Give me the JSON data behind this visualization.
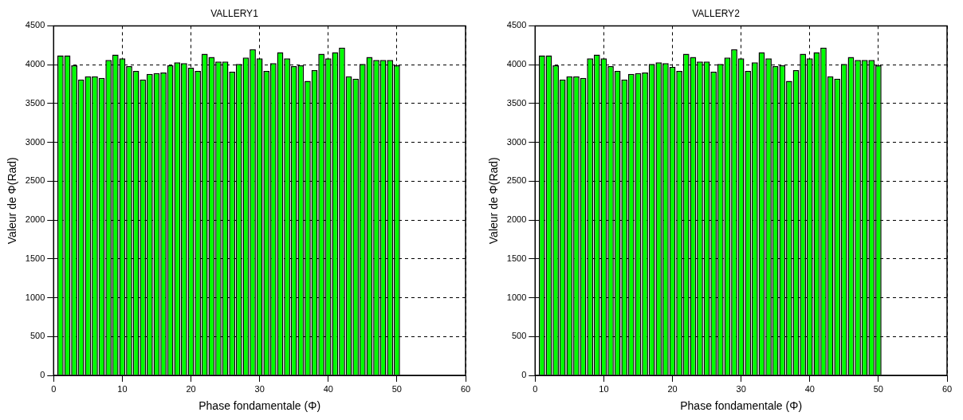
{
  "chart_data": [
    {
      "type": "bar",
      "title": "VALLERY1",
      "xlabel": "Phase fondamentale (Φ)",
      "ylabel": "Valeur de Φ(Rad)",
      "x": [
        1,
        2,
        3,
        4,
        5,
        6,
        7,
        8,
        9,
        10,
        11,
        12,
        13,
        14,
        15,
        16,
        17,
        18,
        19,
        20,
        21,
        22,
        23,
        24,
        25,
        26,
        27,
        28,
        29,
        30,
        31,
        32,
        33,
        34,
        35,
        36,
        37,
        38,
        39,
        40,
        41,
        42,
        43,
        44,
        45,
        46,
        47,
        48,
        49,
        50
      ],
      "values": [
        4120,
        4120,
        3990,
        3810,
        3850,
        3850,
        3830,
        4060,
        4130,
        4080,
        3980,
        3920,
        3810,
        3880,
        3890,
        3900,
        3990,
        4030,
        4020,
        3960,
        3920,
        4140,
        4100,
        4040,
        4040,
        3910,
        4010,
        4090,
        4200,
        4080,
        3920,
        4020,
        4160,
        4080,
        3980,
        3990,
        3790,
        3930,
        4140,
        4080,
        4160,
        4220,
        3850,
        3820,
        4010,
        4100,
        4060,
        4060,
        4060,
        3990
      ],
      "color": "#00ff00",
      "xlim": [
        0,
        60
      ],
      "xticks": [
        0,
        10,
        20,
        30,
        40,
        50,
        60
      ],
      "ylim": [
        0,
        4500
      ],
      "yticks": [
        0,
        500,
        1000,
        1500,
        2000,
        2500,
        3000,
        3500,
        4000,
        4500
      ],
      "grid": true
    },
    {
      "type": "bar",
      "title": "VALLERY2",
      "xlabel": "Phase fondamentale (Φ)",
      "ylabel": "Valeur de Φ(Rad)",
      "x": [
        1,
        2,
        3,
        4,
        5,
        6,
        7,
        8,
        9,
        10,
        11,
        12,
        13,
        14,
        15,
        16,
        17,
        18,
        19,
        20,
        21,
        22,
        23,
        24,
        25,
        26,
        27,
        28,
        29,
        30,
        31,
        32,
        33,
        34,
        35,
        36,
        37,
        38,
        39,
        40,
        41,
        42,
        43,
        44,
        45,
        46,
        47,
        48,
        49,
        50
      ],
      "values": [
        4120,
        4120,
        3990,
        3810,
        3850,
        3850,
        3830,
        4080,
        4130,
        4080,
        3980,
        3920,
        3810,
        3880,
        3890,
        3900,
        4010,
        4030,
        4020,
        3970,
        3920,
        4140,
        4100,
        4040,
        4040,
        3910,
        4010,
        4090,
        4200,
        4080,
        3920,
        4030,
        4160,
        4080,
        3980,
        3990,
        3790,
        3930,
        4140,
        4080,
        4160,
        4220,
        3850,
        3820,
        4010,
        4100,
        4060,
        4060,
        4060,
        3990
      ],
      "color": "#00ff00",
      "xlim": [
        0,
        60
      ],
      "xticks": [
        0,
        10,
        20,
        30,
        40,
        50,
        60
      ],
      "ylim": [
        0,
        4500
      ],
      "yticks": [
        0,
        500,
        1000,
        1500,
        2000,
        2500,
        3000,
        3500,
        4000,
        4500
      ],
      "grid": true
    }
  ]
}
